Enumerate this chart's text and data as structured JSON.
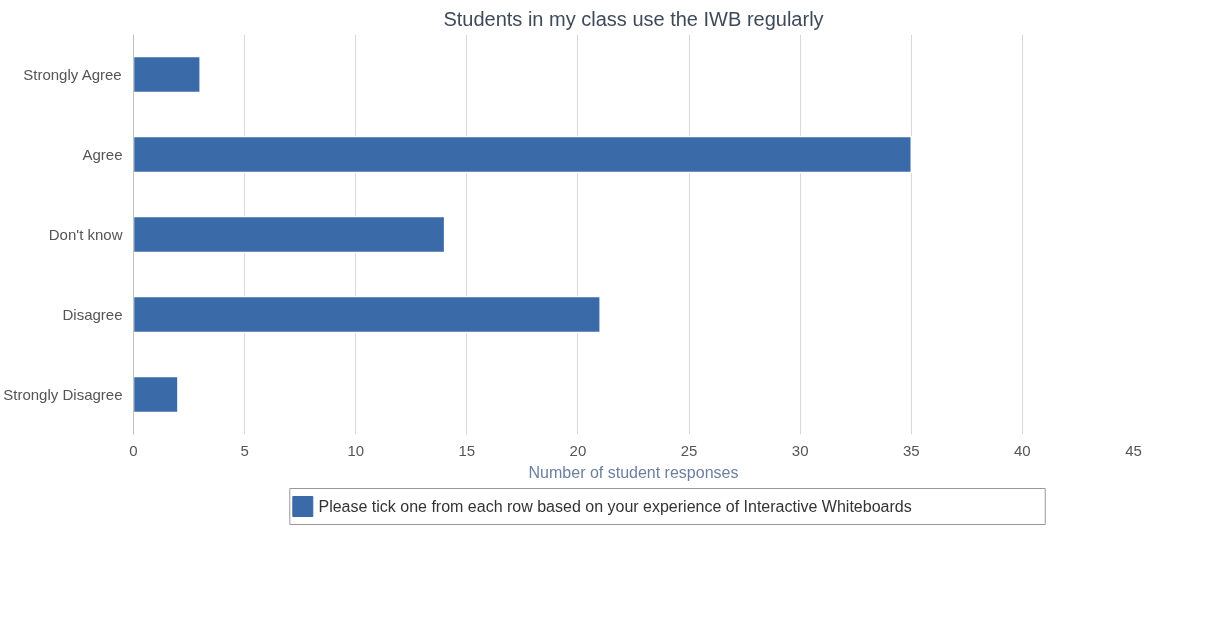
{
  "chart_data": {
    "type": "bar",
    "orientation": "horizontal",
    "title": "Students in my class use the IWB regularly",
    "xlabel": "Number of student responses",
    "categories": [
      "Strongly Agree",
      "Agree",
      "Don't know",
      "Disagree",
      "Strongly Disagree"
    ],
    "series": [
      {
        "name": "Please tick one from each row based on your experience of Interactive Whiteboards",
        "color": "#3a6aa8",
        "values": [
          3,
          35,
          14,
          21,
          2
        ]
      }
    ],
    "xlim": [
      0,
      45
    ],
    "xticks": [
      0,
      5,
      10,
      15,
      20,
      25,
      30,
      35,
      40,
      45
    ],
    "grid": "x",
    "legend": "bottom"
  }
}
